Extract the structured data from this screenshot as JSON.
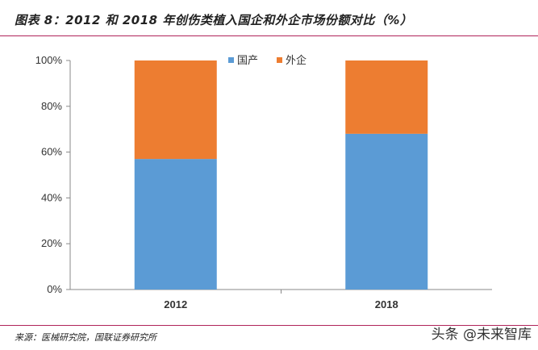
{
  "header": {
    "title": "图表 8：2012 和 2018 年创伤类植入国企和外企市场份额对比（%）"
  },
  "footer": {
    "source": "来源：医械研究院，国联证券研究所",
    "watermark": "头条 @未来智库"
  },
  "chart_data": {
    "type": "bar",
    "stacked": true,
    "percent": true,
    "categories": [
      "2012",
      "2018"
    ],
    "series": [
      {
        "name": "国产",
        "values": [
          57,
          68
        ],
        "color": "#5b9bd5"
      },
      {
        "name": "外企",
        "values": [
          43,
          32
        ],
        "color": "#ed7d31"
      }
    ],
    "ylim": [
      0,
      100
    ],
    "yticks": [
      "0%",
      "20%",
      "40%",
      "60%",
      "80%",
      "100%"
    ],
    "legend": "top-right",
    "grid": false
  }
}
